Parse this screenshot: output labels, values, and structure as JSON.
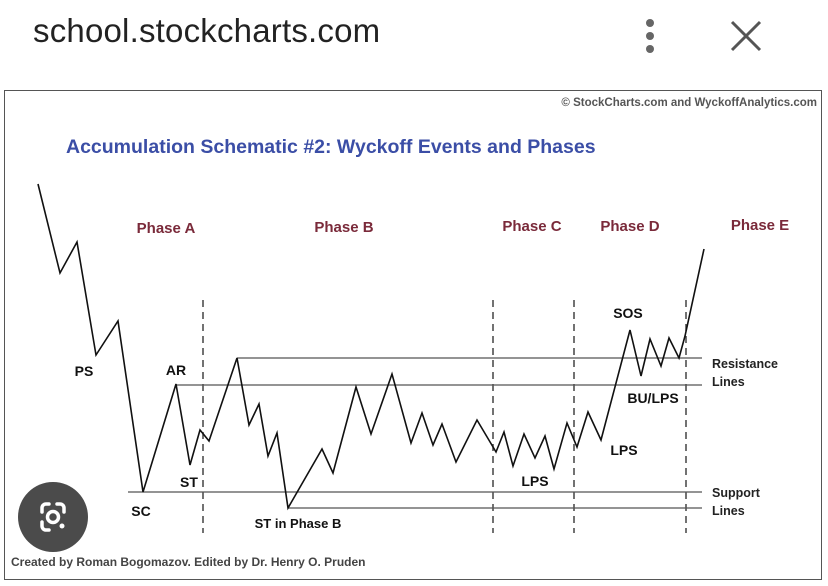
{
  "header": {
    "site": "school.stockcharts.com",
    "menu_icon": "kebab-menu-icon",
    "close_icon": "close-icon"
  },
  "diagram": {
    "copyright": "© StockCharts.com and WyckoffAnalytics.com",
    "title": "Accumulation Schematic #2: Wyckoff Events and Phases",
    "credit": "Created by Roman Bogomazov. Edited by Dr. Henry O. Pruden",
    "phases": [
      "Phase A",
      "Phase B",
      "Phase C",
      "Phase D",
      "Phase E"
    ],
    "events": {
      "ps": "PS",
      "sc": "SC",
      "ar": "AR",
      "st": "ST",
      "st_b": "ST in Phase B",
      "lps1": "LPS",
      "lps2": "LPS",
      "sos": "SOS",
      "bu": "BU/LPS"
    },
    "resistance": [
      "Resistance",
      "Lines"
    ],
    "support": [
      "Support",
      "Lines"
    ],
    "colors": {
      "title": "#3b4ea6",
      "phase": "#7a2a3a",
      "line": "#111111"
    }
  },
  "overlay": {
    "lens_icon": "google-lens-icon"
  }
}
